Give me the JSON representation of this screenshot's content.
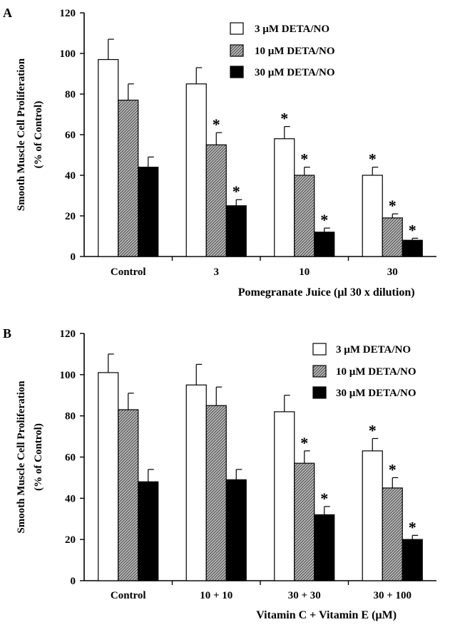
{
  "chart_data": [
    {
      "type": "bar",
      "panel_label": "A",
      "categories": [
        "Control",
        "3",
        "10",
        "30"
      ],
      "xlabel": "Pomegranate Juice (µl 30 x dilution)",
      "ylabel": "Smooth Muscle Cell Proliferation",
      "ylabel_sub": "(% of Control)",
      "ylim": [
        0,
        120
      ],
      "yticks": [
        "0",
        "20",
        "40",
        "60",
        "80",
        "100",
        "120"
      ],
      "legend_position": "top-right",
      "series": [
        {
          "name": "3 µM DETA/NO",
          "fill": "white",
          "values": [
            97,
            85,
            58,
            40
          ],
          "errors": [
            10,
            8,
            6,
            4
          ],
          "significant": [
            false,
            false,
            true,
            true
          ]
        },
        {
          "name": "10 µM DETA/NO",
          "fill": "hatched",
          "values": [
            77,
            55,
            40,
            19
          ],
          "errors": [
            8,
            6,
            4,
            2
          ],
          "significant": [
            false,
            true,
            true,
            true
          ]
        },
        {
          "name": "30 µM DETA/NO",
          "fill": "black",
          "values": [
            44,
            25,
            12,
            8
          ],
          "errors": [
            5,
            3,
            2,
            1
          ],
          "significant": [
            false,
            true,
            true,
            true
          ]
        }
      ],
      "asterisk": "*"
    },
    {
      "type": "bar",
      "panel_label": "B",
      "categories": [
        "Control",
        "10 + 10",
        "30 + 30",
        "30 + 100"
      ],
      "xlabel": "Vitamin C + Vitamin E (µM)",
      "ylabel": "Smooth Muscle Cell Proliferation",
      "ylabel_sub": "(% of Control)",
      "ylim": [
        0,
        120
      ],
      "yticks": [
        "0",
        "20",
        "40",
        "60",
        "80",
        "100",
        "120"
      ],
      "legend_position": "top-right",
      "series": [
        {
          "name": "3 µM DETA/NO",
          "fill": "white",
          "values": [
            101,
            95,
            82,
            63
          ],
          "errors": [
            9,
            10,
            8,
            6
          ],
          "significant": [
            false,
            false,
            false,
            true
          ]
        },
        {
          "name": "10 µM DETA/NO",
          "fill": "hatched",
          "values": [
            83,
            85,
            57,
            45
          ],
          "errors": [
            8,
            9,
            6,
            5
          ],
          "significant": [
            false,
            false,
            true,
            true
          ]
        },
        {
          "name": "30 µM DETA/NO",
          "fill": "black",
          "values": [
            48,
            49,
            32,
            20
          ],
          "errors": [
            6,
            5,
            4,
            2
          ],
          "significant": [
            false,
            false,
            true,
            true
          ]
        }
      ],
      "asterisk": "*"
    }
  ]
}
